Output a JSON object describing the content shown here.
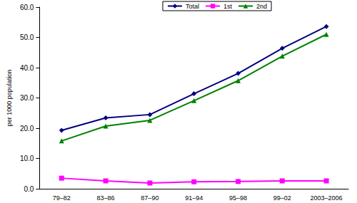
{
  "chart_data": {
    "type": "line",
    "y_label": "per 1000 population",
    "categories": [
      "79–82",
      "83–86",
      "87–90",
      "91–94",
      "95–98",
      "99–02",
      "2003–2006"
    ],
    "series": [
      {
        "name": "Total",
        "color": "#000080",
        "marker": "diamond",
        "values": [
          19.3,
          23.4,
          24.5,
          31.4,
          38.1,
          46.4,
          53.6
        ]
      },
      {
        "name": "1st",
        "color": "#ff00ff",
        "marker": "square",
        "values": [
          3.5,
          2.6,
          1.9,
          2.3,
          2.4,
          2.6,
          2.6
        ]
      },
      {
        "name": "2nd",
        "color": "#008000",
        "marker": "triangle",
        "values": [
          15.8,
          20.7,
          22.6,
          29.1,
          35.7,
          43.8,
          51.0
        ]
      }
    ],
    "ylim": [
      0,
      60
    ],
    "yticks": [
      {
        "value": 0,
        "label": "0.0"
      },
      {
        "value": 10,
        "label": "10.0"
      },
      {
        "value": 20,
        "label": "20.0"
      },
      {
        "value": 30,
        "label": "30.0"
      },
      {
        "value": 40,
        "label": "40.0"
      },
      {
        "value": 50,
        "label": "50.0"
      },
      {
        "value": 60,
        "label": "60.0"
      }
    ],
    "grid": false,
    "legend": "top-right"
  }
}
